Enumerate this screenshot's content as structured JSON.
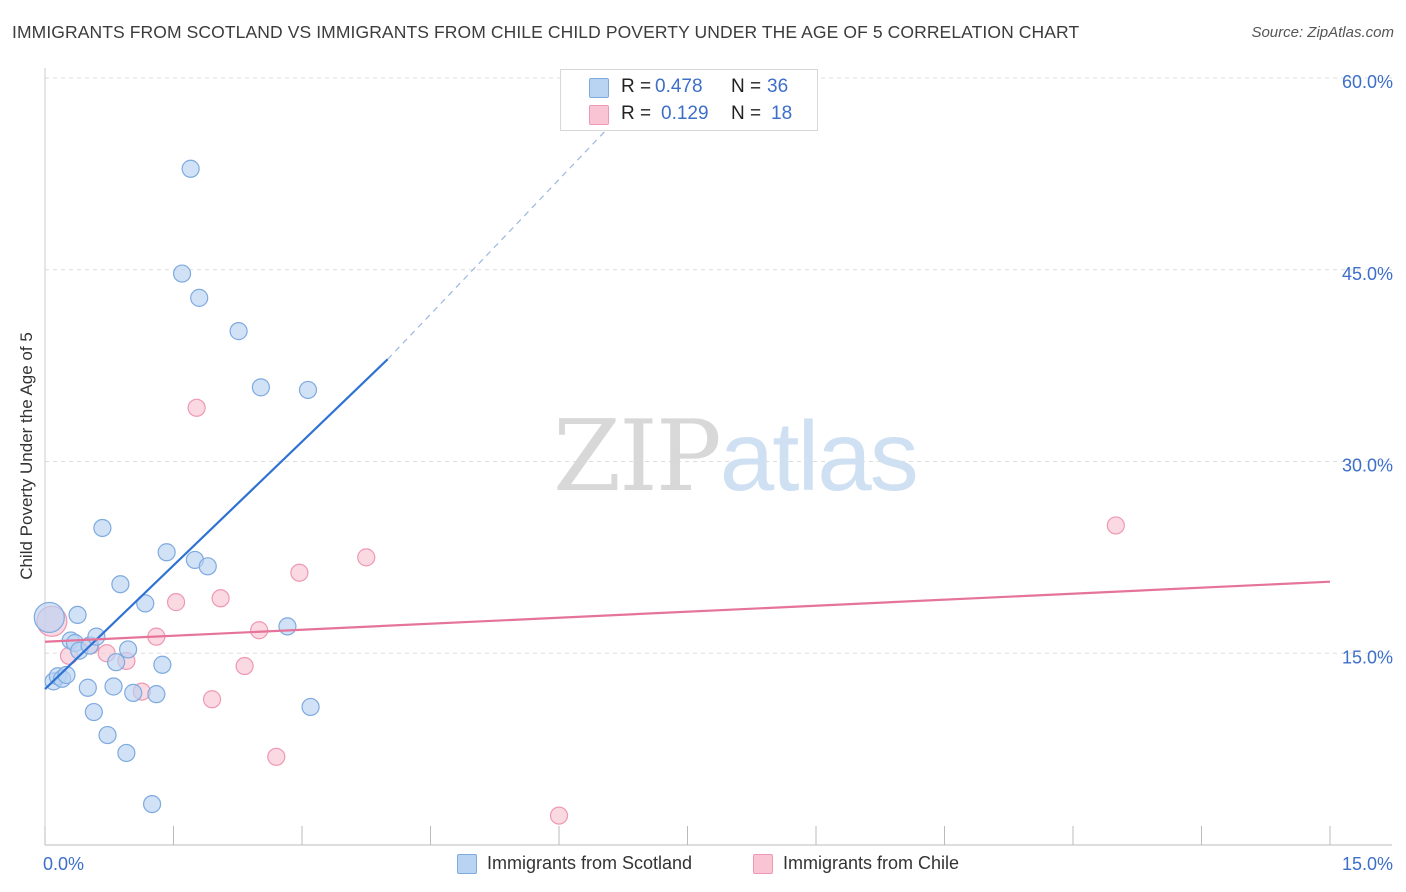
{
  "title": "IMMIGRANTS FROM SCOTLAND VS IMMIGRANTS FROM CHILE CHILD POVERTY UNDER THE AGE OF 5 CORRELATION CHART",
  "source": "Source: ZipAtlas.com",
  "watermark": {
    "zip": "ZIP",
    "atlas": "atlas"
  },
  "legend": {
    "rows": [
      {
        "r_label": "R =",
        "r_value": "0.478",
        "n_label": "N =",
        "n_value": "36"
      },
      {
        "r_label": "R =",
        "r_value": "0.129",
        "n_label": "N =",
        "n_value": "18"
      }
    ]
  },
  "bottom_legend": {
    "scotland": "Immigrants from Scotland",
    "chile": "Immigrants from Chile"
  },
  "colors": {
    "scotland_fill": "#b9d3f3",
    "scotland_stroke": "#7eaadf",
    "scotland_line": "#2f72d2",
    "chile_fill": "#f9c5d4",
    "chile_stroke": "#ee98b3",
    "chile_line": "#e5739a",
    "tick_label": "#3d6fc8",
    "grid": "#dddddd"
  },
  "chart_data": {
    "type": "scatter",
    "xlabel": "",
    "ylabel": "Child Poverty Under the Age of 5",
    "xlim": [
      0,
      15
    ],
    "ylim": [
      0,
      60
    ],
    "x_tick_labels": [
      {
        "value": 0,
        "label": "0.0%"
      },
      {
        "value": 15,
        "label": "15.0%"
      }
    ],
    "y_tick_labels": [
      {
        "value": 15,
        "label": "15.0%"
      },
      {
        "value": 30,
        "label": "30.0%"
      },
      {
        "value": 45,
        "label": "45.0%"
      },
      {
        "value": 60,
        "label": "60.0%"
      }
    ],
    "grid": true,
    "legend_position": "top-center",
    "series": [
      {
        "name": "Immigrants from Scotland",
        "r": 0.478,
        "n": 36,
        "points": [
          [
            0.05,
            17.8
          ],
          [
            0.1,
            12.8
          ],
          [
            0.15,
            13.2
          ],
          [
            0.2,
            13.0
          ],
          [
            0.25,
            13.3
          ],
          [
            0.3,
            16.0
          ],
          [
            0.35,
            15.8
          ],
          [
            0.38,
            18.0
          ],
          [
            0.4,
            15.2
          ],
          [
            0.5,
            12.3
          ],
          [
            0.52,
            15.6
          ],
          [
            0.57,
            10.4
          ],
          [
            0.6,
            16.3
          ],
          [
            0.67,
            24.8
          ],
          [
            0.73,
            8.6
          ],
          [
            0.8,
            12.4
          ],
          [
            0.83,
            14.3
          ],
          [
            0.88,
            20.4
          ],
          [
            0.95,
            7.2
          ],
          [
            0.97,
            15.3
          ],
          [
            1.03,
            11.9
          ],
          [
            1.17,
            18.9
          ],
          [
            1.25,
            3.2
          ],
          [
            1.3,
            11.8
          ],
          [
            1.37,
            14.1
          ],
          [
            1.42,
            22.9
          ],
          [
            1.6,
            44.7
          ],
          [
            1.7,
            52.9
          ],
          [
            1.75,
            22.3
          ],
          [
            1.8,
            42.8
          ],
          [
            1.9,
            21.8
          ],
          [
            2.26,
            40.2
          ],
          [
            2.52,
            35.8
          ],
          [
            2.83,
            17.1
          ],
          [
            3.07,
            35.6
          ],
          [
            3.1,
            10.8
          ]
        ],
        "trend": {
          "x0": 0.0,
          "y0": 12.2,
          "x1": 4.0,
          "y1": 38.0,
          "dash_to_x": 7.2,
          "dash_to_y": 60.5
        }
      },
      {
        "name": "Immigrants from Chile",
        "r": 0.129,
        "n": 18,
        "points": [
          [
            0.08,
            17.5
          ],
          [
            0.28,
            14.8
          ],
          [
            0.53,
            15.6
          ],
          [
            0.72,
            15.0
          ],
          [
            0.95,
            14.4
          ],
          [
            1.13,
            12.0
          ],
          [
            1.3,
            16.3
          ],
          [
            1.53,
            19.0
          ],
          [
            1.77,
            34.2
          ],
          [
            1.95,
            11.4
          ],
          [
            2.05,
            19.3
          ],
          [
            2.33,
            14.0
          ],
          [
            2.5,
            16.8
          ],
          [
            2.7,
            6.9
          ],
          [
            2.97,
            21.3
          ],
          [
            3.75,
            22.5
          ],
          [
            6.0,
            2.3
          ],
          [
            12.5,
            25.0
          ]
        ],
        "trend": {
          "x0": 0.0,
          "y0": 15.9,
          "x1": 15.0,
          "y1": 20.6
        }
      }
    ]
  }
}
